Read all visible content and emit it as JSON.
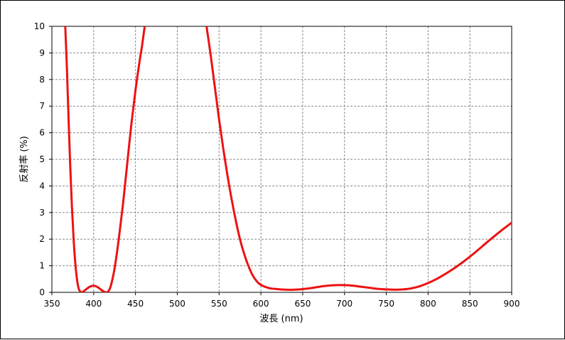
{
  "chart_data": {
    "type": "line",
    "title": "",
    "xlabel": "波長 (nm)",
    "ylabel": "反射率 (%)",
    "xlim": [
      350,
      900
    ],
    "ylim": [
      0,
      10
    ],
    "x_ticks": [
      "350",
      "400",
      "450",
      "500",
      "550",
      "600",
      "650",
      "700",
      "750",
      "800",
      "850",
      "900"
    ],
    "y_ticks": [
      "0",
      "1",
      "2",
      "3",
      "4",
      "5",
      "6",
      "7",
      "8",
      "9",
      "10"
    ],
    "grid": true,
    "legend": "none",
    "series": [
      {
        "color": "#ee1111",
        "points": [
          [
            366,
            10
          ],
          [
            368,
            8.4
          ],
          [
            370,
            6.5
          ],
          [
            372,
            4.7
          ],
          [
            374,
            3.2
          ],
          [
            376,
            2.0
          ],
          [
            378,
            1.1
          ],
          [
            380,
            0.5
          ],
          [
            382,
            0.15
          ],
          [
            385,
            0.0
          ],
          [
            388,
            0.04
          ],
          [
            392,
            0.14
          ],
          [
            396,
            0.22
          ],
          [
            400,
            0.25
          ],
          [
            404,
            0.21
          ],
          [
            408,
            0.12
          ],
          [
            412,
            0.03
          ],
          [
            415,
            0.0
          ],
          [
            418,
            0.06
          ],
          [
            421,
            0.3
          ],
          [
            425,
            0.9
          ],
          [
            430,
            2.0
          ],
          [
            435,
            3.3
          ],
          [
            440,
            4.8
          ],
          [
            445,
            6.3
          ],
          [
            450,
            7.6
          ],
          [
            455,
            8.7
          ],
          [
            458,
            9.3
          ],
          [
            461,
            10
          ],
          [
            535,
            10
          ],
          [
            540,
            8.9
          ],
          [
            545,
            7.7
          ],
          [
            550,
            6.5
          ],
          [
            555,
            5.4
          ],
          [
            560,
            4.4
          ],
          [
            565,
            3.5
          ],
          [
            570,
            2.7
          ],
          [
            575,
            2.0
          ],
          [
            580,
            1.45
          ],
          [
            585,
            1.0
          ],
          [
            590,
            0.65
          ],
          [
            595,
            0.42
          ],
          [
            600,
            0.28
          ],
          [
            610,
            0.16
          ],
          [
            620,
            0.12
          ],
          [
            630,
            0.1
          ],
          [
            640,
            0.1
          ],
          [
            650,
            0.12
          ],
          [
            660,
            0.16
          ],
          [
            670,
            0.21
          ],
          [
            680,
            0.25
          ],
          [
            690,
            0.27
          ],
          [
            700,
            0.27
          ],
          [
            710,
            0.25
          ],
          [
            720,
            0.21
          ],
          [
            730,
            0.17
          ],
          [
            740,
            0.13
          ],
          [
            750,
            0.11
          ],
          [
            760,
            0.1
          ],
          [
            770,
            0.11
          ],
          [
            780,
            0.15
          ],
          [
            790,
            0.23
          ],
          [
            800,
            0.35
          ],
          [
            810,
            0.5
          ],
          [
            820,
            0.68
          ],
          [
            830,
            0.88
          ],
          [
            840,
            1.1
          ],
          [
            850,
            1.34
          ],
          [
            860,
            1.6
          ],
          [
            870,
            1.87
          ],
          [
            880,
            2.13
          ],
          [
            890,
            2.38
          ],
          [
            900,
            2.62
          ]
        ]
      }
    ]
  }
}
